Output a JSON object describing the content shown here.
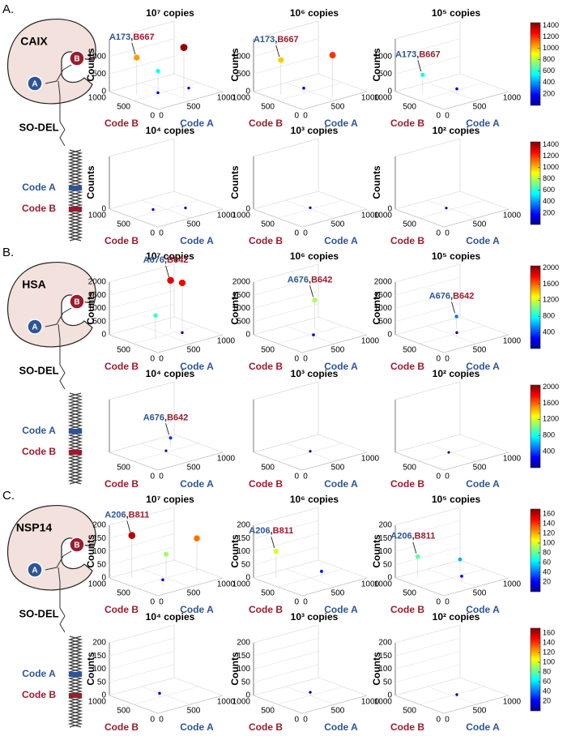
{
  "panels": [
    {
      "label": "A.",
      "target": "CAIX",
      "library": "SO-DEL",
      "code_a": "Code A",
      "code_b": "Code B",
      "pocket_a": "A",
      "pocket_b": "B",
      "colorbars": [
        {
          "lim": [
            0,
            1450
          ],
          "ticks": [
            200,
            400,
            600,
            800,
            1000,
            1200,
            1400
          ]
        },
        {
          "lim": [
            0,
            1450
          ],
          "ticks": [
            200,
            400,
            600,
            800,
            1000,
            1200,
            1400
          ]
        }
      ],
      "plots": [
        {
          "title": "10⁷ copies",
          "zlabel": "Counts",
          "xlabel": "Code A",
          "ylabel": "Code B",
          "zlim": [
            0,
            1500
          ],
          "zticks": [
            0,
            500,
            1000
          ],
          "xticks": [
            0,
            500,
            1000
          ],
          "yticks": [
            0,
            500,
            1000
          ],
          "points": [
            {
              "a": 173,
              "b": 667,
              "count": 1050
            },
            {
              "a": 520,
              "b": 160,
              "count": 1420
            },
            {
              "a": 450,
              "b": 600,
              "count": 560
            },
            {
              "a": 300,
              "b": 400,
              "count": 120
            },
            {
              "a": 700,
              "b": 300,
              "count": 100
            }
          ],
          "annotation": {
            "a": "A173",
            "sep": ",",
            "b": "B667"
          }
        },
        {
          "title": "10⁶ copies",
          "zlabel": "Counts",
          "xlabel": "Code A",
          "ylabel": "Code B",
          "zlim": [
            0,
            1500
          ],
          "zticks": [
            0,
            500,
            1000
          ],
          "xticks": [
            0,
            500,
            1000
          ],
          "yticks": [
            0,
            500,
            1000
          ],
          "points": [
            {
              "a": 173,
              "b": 667,
              "count": 980
            },
            {
              "a": 560,
              "b": 120,
              "count": 1200
            },
            {
              "a": 400,
              "b": 500,
              "count": 150
            }
          ],
          "annotation": {
            "a": "A173",
            "sep": ",",
            "b": "B667"
          }
        },
        {
          "title": "10⁵ copies",
          "zlabel": "Counts",
          "xlabel": "Code A",
          "ylabel": "Code B",
          "zlim": [
            0,
            1500
          ],
          "zticks": [
            0,
            500,
            1000
          ],
          "xticks": [
            0,
            500,
            1000
          ],
          "yticks": [
            0,
            500,
            1000
          ],
          "points": [
            {
              "a": 173,
              "b": 667,
              "count": 560
            },
            {
              "a": 500,
              "b": 400,
              "count": 130
            }
          ],
          "annotation": {
            "a": "A173",
            "sep": ",",
            "b": "B667"
          }
        },
        {
          "title": "10⁴ copies",
          "zlabel": "Counts",
          "xlabel": "Code A",
          "ylabel": "Code B",
          "zlim": [
            0,
            1500
          ],
          "zticks": [
            0
          ],
          "xticks": [
            0,
            500,
            1000
          ],
          "yticks": [
            0,
            500,
            1000
          ],
          "points": [
            {
              "a": 300,
              "b": 500,
              "count": 90
            },
            {
              "a": 650,
              "b": 300,
              "count": 60
            }
          ]
        },
        {
          "title": "10³ copies",
          "zlabel": "Counts",
          "xlabel": "Code A",
          "ylabel": "Code B",
          "zlim": [
            0,
            1500
          ],
          "zticks": [
            0
          ],
          "xticks": [
            0,
            500,
            1000
          ],
          "yticks": [
            0,
            500,
            1000
          ],
          "points": [
            {
              "a": 500,
              "b": 500,
              "count": 40
            }
          ]
        },
        {
          "title": "10² copies",
          "zlabel": "Counts",
          "xlabel": "Code A",
          "ylabel": "Code B",
          "zlim": [
            0,
            1500
          ],
          "zticks": [
            0
          ],
          "xticks": [
            0,
            500,
            1000
          ],
          "yticks": [
            0,
            500,
            1000
          ],
          "points": [
            {
              "a": 450,
              "b": 550,
              "count": 30
            }
          ]
        }
      ]
    },
    {
      "label": "B.",
      "target": "HSA",
      "library": "SO-DEL",
      "code_a": "Code A",
      "code_b": "Code B",
      "pocket_a": "A",
      "pocket_b": "B",
      "colorbars": [
        {
          "lim": [
            0,
            2050
          ],
          "ticks": [
            400,
            800,
            1200,
            1600,
            2000
          ]
        },
        {
          "lim": [
            0,
            2050
          ],
          "ticks": [
            400,
            800,
            1200,
            1600,
            2000
          ]
        }
      ],
      "plots": [
        {
          "title": "10⁷ copies",
          "zlabel": "Counts",
          "xlabel": "Code A",
          "ylabel": "Code B",
          "zlim": [
            0,
            2000
          ],
          "zticks": [
            0,
            500,
            1000,
            1500,
            2000
          ],
          "xticks": [
            0,
            500,
            1000
          ],
          "yticks": [
            0,
            500
          ],
          "points": [
            {
              "a": 676,
              "b": 642,
              "count": 1850
            },
            {
              "a": 750,
              "b": 500,
              "count": 1800
            },
            {
              "a": 300,
              "b": 450,
              "count": 900
            },
            {
              "a": 600,
              "b": 300,
              "count": 150
            }
          ],
          "annotation": {
            "a": "A676",
            "sep": ",",
            "b": "B642"
          }
        },
        {
          "title": "10⁶ copies",
          "zlabel": "Counts",
          "xlabel": "Code A",
          "ylabel": "Code B",
          "zlim": [
            0,
            2000
          ],
          "zticks": [
            0,
            500,
            1000,
            1500,
            2000
          ],
          "xticks": [
            0,
            500,
            1000
          ],
          "yticks": [
            0,
            500
          ],
          "points": [
            {
              "a": 676,
              "b": 642,
              "count": 1100
            },
            {
              "a": 400,
              "b": 300,
              "count": 200
            }
          ],
          "annotation": {
            "a": "A676",
            "sep": ",",
            "b": "B642"
          }
        },
        {
          "title": "10⁵ copies",
          "zlabel": "Counts",
          "xlabel": "Code A",
          "ylabel": "Code B",
          "zlim": [
            0,
            2000
          ],
          "zticks": [
            0,
            500,
            1000,
            1500,
            2000
          ],
          "xticks": [
            0,
            500,
            1000
          ],
          "yticks": [
            0,
            500
          ],
          "points": [
            {
              "a": 676,
              "b": 642,
              "count": 480
            },
            {
              "a": 500,
              "b": 400,
              "count": 150
            }
          ],
          "annotation": {
            "a": "A676",
            "sep": ",",
            "b": "B642"
          }
        },
        {
          "title": "10⁴ copies",
          "xlabel": "Code A",
          "ylabel": "Code B",
          "zlim": [
            0,
            2000
          ],
          "xticks": [
            0,
            500,
            1000
          ],
          "yticks": [
            0,
            500
          ],
          "points": [
            {
              "a": 676,
              "b": 642,
              "count": 330
            },
            {
              "a": 500,
              "b": 500,
              "count": 60
            }
          ],
          "annotation": {
            "a": "A676",
            "sep": ",",
            "b": "B642"
          }
        },
        {
          "title": "10³ copies",
          "xlabel": "Code A",
          "ylabel": "Code B",
          "zlim": [
            0,
            2000
          ],
          "xticks": [
            0,
            500,
            1000
          ],
          "yticks": [
            0,
            500
          ],
          "points": [
            {
              "a": 500,
              "b": 500,
              "count": 40
            }
          ]
        },
        {
          "title": "10² copies",
          "xlabel": "Code A",
          "ylabel": "Code B",
          "zlim": [
            0,
            2000
          ],
          "xticks": [
            0,
            500,
            1000
          ],
          "yticks": [
            0,
            500
          ],
          "points": [
            {
              "a": 450,
              "b": 500,
              "count": 30
            }
          ]
        }
      ]
    },
    {
      "label": "C.",
      "target": "NSP14",
      "library": "SO-DEL",
      "code_a": "Code A",
      "code_b": "Code B",
      "pocket_a": "A",
      "pocket_b": "B",
      "colorbars": [
        {
          "lim": [
            0,
            170
          ],
          "ticks": [
            20,
            40,
            60,
            80,
            100,
            120,
            140,
            160
          ]
        },
        {
          "lim": [
            0,
            170
          ],
          "ticks": [
            20,
            40,
            60,
            80,
            100,
            120,
            140,
            160
          ]
        }
      ],
      "plots": [
        {
          "title": "10⁷ copies",
          "zlabel": "Counts",
          "xlabel": "Code A",
          "ylabel": "Code B",
          "zlim": [
            0,
            200
          ],
          "zticks": [
            0,
            50,
            100,
            150,
            200
          ],
          "xticks": [
            0,
            500,
            1000
          ],
          "yticks": [
            0,
            500,
            1000
          ],
          "points": [
            {
              "a": 206,
              "b": 811,
              "count": 160
            },
            {
              "a": 900,
              "b": 400,
              "count": 130
            },
            {
              "a": 500,
              "b": 500,
              "count": 90
            },
            {
              "a": 300,
              "b": 300,
              "count": 20
            }
          ],
          "annotation": {
            "a": "A206",
            "sep": ",",
            "b": "B811"
          }
        },
        {
          "title": "10⁶ copies",
          "zlabel": "Counts",
          "xlabel": "Code A",
          "ylabel": "Code B",
          "zlim": [
            0,
            200
          ],
          "zticks": [
            0,
            50,
            100,
            150,
            200
          ],
          "xticks": [
            0,
            500,
            1000
          ],
          "yticks": [
            0,
            500,
            1000
          ],
          "points": [
            {
              "a": 206,
              "b": 811,
              "count": 100
            },
            {
              "a": 600,
              "b": 400,
              "count": 25
            }
          ],
          "annotation": {
            "a": "A206",
            "sep": ",",
            "b": "B811"
          }
        },
        {
          "title": "10⁵ copies",
          "zlabel": "Counts",
          "xlabel": "Code A",
          "ylabel": "Code B",
          "zlim": [
            0,
            200
          ],
          "zticks": [
            0,
            50,
            100,
            150,
            200
          ],
          "xticks": [
            0,
            500,
            1000
          ],
          "yticks": [
            0,
            500,
            1000
          ],
          "points": [
            {
              "a": 206,
              "b": 811,
              "count": 80
            },
            {
              "a": 700,
              "b": 600,
              "count": 50
            },
            {
              "a": 500,
              "b": 300,
              "count": 20
            }
          ],
          "annotation": {
            "a": "A206",
            "sep": ",",
            "b": "B811"
          }
        },
        {
          "title": "10⁴ copies",
          "zlabel": "Counts",
          "xlabel": "Code A",
          "ylabel": "Code B",
          "zlim": [
            0,
            200
          ],
          "zticks": [
            0,
            50,
            100,
            150,
            200
          ],
          "xticks": [
            0,
            500,
            1000
          ],
          "yticks": [
            0,
            500,
            1000
          ],
          "points": [
            {
              "a": 400,
              "b": 500,
              "count": 15
            }
          ]
        },
        {
          "title": "10³ copies",
          "zlabel": "Counts",
          "xlabel": "Code A",
          "ylabel": "Code B",
          "zlim": [
            0,
            200
          ],
          "zticks": [
            0,
            50,
            100,
            150,
            200
          ],
          "xticks": [
            0,
            500,
            1000
          ],
          "yticks": [
            0,
            500,
            1000
          ],
          "points": [
            {
              "a": 500,
              "b": 500,
              "count": 12
            }
          ]
        },
        {
          "title": "10² copies",
          "zlabel": "Counts",
          "xlabel": "Code A",
          "ylabel": "Code B",
          "zlim": [
            0,
            200
          ],
          "zticks": [
            0,
            50,
            100,
            150,
            200
          ],
          "xticks": [
            0,
            500,
            1000
          ],
          "yticks": [
            0,
            500,
            1000
          ],
          "points": [
            {
              "a": 500,
              "b": 400,
              "count": 10
            }
          ]
        }
      ]
    }
  ]
}
